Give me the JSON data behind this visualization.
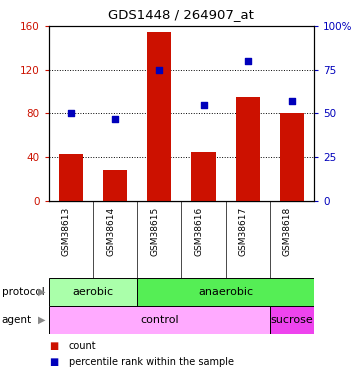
{
  "title": "GDS1448 / 264907_at",
  "samples": [
    "GSM38613",
    "GSM38614",
    "GSM38615",
    "GSM38616",
    "GSM38617",
    "GSM38618"
  ],
  "counts": [
    43,
    28,
    155,
    45,
    95,
    80
  ],
  "percentile_ranks": [
    50,
    47,
    75,
    55,
    80,
    57
  ],
  "left_ylim": [
    0,
    160
  ],
  "right_ylim": [
    0,
    100
  ],
  "left_yticks": [
    0,
    40,
    80,
    120,
    160
  ],
  "left_yticklabels": [
    "0",
    "40",
    "80",
    "120",
    "160"
  ],
  "right_yticks": [
    0,
    25,
    50,
    75,
    100
  ],
  "right_yticklabels": [
    "0",
    "25",
    "50",
    "75",
    "100%"
  ],
  "bar_color": "#cc1100",
  "dot_color": "#0000bb",
  "protocol_labels": [
    [
      "aerobic",
      0,
      2
    ],
    [
      "anaerobic",
      2,
      6
    ]
  ],
  "protocol_colors": [
    "#aaffaa",
    "#55ee55"
  ],
  "agent_labels": [
    [
      "control",
      0,
      5
    ],
    [
      "sucrose",
      5,
      6
    ]
  ],
  "agent_colors": [
    "#ffaaff",
    "#ee44ee"
  ],
  "bg_color": "#ffffff",
  "label_bg_color": "#cccccc"
}
